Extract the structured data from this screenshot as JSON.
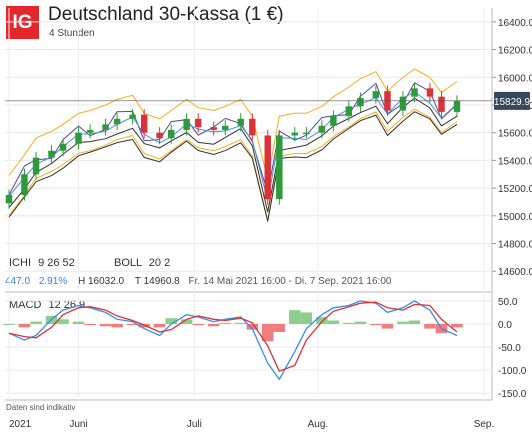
{
  "header": {
    "logo_text": "IG",
    "title": "Deutschland 30-Kassa (1 €)",
    "subtitle": "4 Stunden"
  },
  "indicators_row": {
    "ichi_label": "ICHI",
    "ichi_params": "9  26  52",
    "boll_label": "BOLL",
    "boll_params": "20  2"
  },
  "stats_row": {
    "change_value": "447.0",
    "change_pct": "2.91%",
    "high_label": "H 16032.0",
    "low_label": "T 14960.8",
    "range_label": "Fr. 14 Mai 2021 16:00 - Di. 7 Sep. 2021 16:00"
  },
  "macd_row": {
    "label": "MACD",
    "params": "12  26  9"
  },
  "footer": {
    "disclaimer": "Daten sind indikativ"
  },
  "colors": {
    "accent": "#e4262d",
    "price_badge": "#37475c",
    "up_candle": "#2e9a3c",
    "down_candle": "#d9333a",
    "bollinger": "#f2b01e",
    "ichimoku_cloud": "#333333",
    "tenkan": "#5a4a8a",
    "kijun": "#4a90d9",
    "macd_line": "#3b8be8",
    "signal_line": "#d9333a",
    "hist_pos": "#7fc97f",
    "hist_neg": "#f07070"
  },
  "chart_data": [
    {
      "type": "line",
      "name": "price",
      "last_price_label": "15829.9",
      "x": [
        "2021-05-14",
        "2021-05-18",
        "2021-05-21",
        "2021-05-25",
        "2021-05-28",
        "2021-06-01",
        "2021-06-04",
        "2021-06-08",
        "2021-06-11",
        "2021-06-15",
        "2021-06-18",
        "2021-06-22",
        "2021-06-25",
        "2021-06-29",
        "2021-07-02",
        "2021-07-06",
        "2021-07-09",
        "2021-07-13",
        "2021-07-16",
        "2021-07-20",
        "2021-07-23",
        "2021-07-27",
        "2021-07-30",
        "2021-08-03",
        "2021-08-06",
        "2021-08-10",
        "2021-08-13",
        "2021-08-17",
        "2021-08-20",
        "2021-08-24",
        "2021-08-27",
        "2021-08-31",
        "2021-09-03",
        "2021-09-07"
      ],
      "close": [
        15150,
        15300,
        15420,
        15470,
        15520,
        15600,
        15620,
        15660,
        15700,
        15730,
        15600,
        15560,
        15620,
        15700,
        15640,
        15620,
        15650,
        15700,
        15580,
        15120,
        15580,
        15600,
        15600,
        15650,
        15720,
        15790,
        15850,
        15900,
        15760,
        15860,
        15920,
        15860,
        15750,
        15829.9
      ],
      "y_ticks": [
        14600,
        14800,
        15000,
        15200,
        15400,
        15600,
        15800,
        16000,
        16200,
        16400
      ],
      "ylim": [
        14450,
        16500
      ],
      "x_tick_labels": [
        "2021",
        "Juni",
        "Juli",
        "Aug.",
        "Sep."
      ],
      "x_tick_dates": [
        "2021-05-14",
        "2021-06-01",
        "2021-07-01",
        "2021-08-02",
        "2021-09-14"
      ]
    },
    {
      "type": "bar",
      "name": "MACD",
      "values": [
        -20,
        -35,
        -25,
        10,
        30,
        40,
        35,
        25,
        10,
        5,
        -10,
        -25,
        0,
        20,
        15,
        5,
        10,
        15,
        -10,
        -85,
        -120,
        -60,
        -10,
        20,
        35,
        40,
        50,
        45,
        25,
        35,
        50,
        30,
        -10,
        -25
      ],
      "y_ticks": [
        -150,
        -100,
        -50,
        0,
        50
      ],
      "y_tick_labels": [
        "-150.0",
        "-100.0",
        "-50.0",
        "0.0",
        "50.0"
      ],
      "ylim": [
        -165,
        65
      ]
    }
  ]
}
